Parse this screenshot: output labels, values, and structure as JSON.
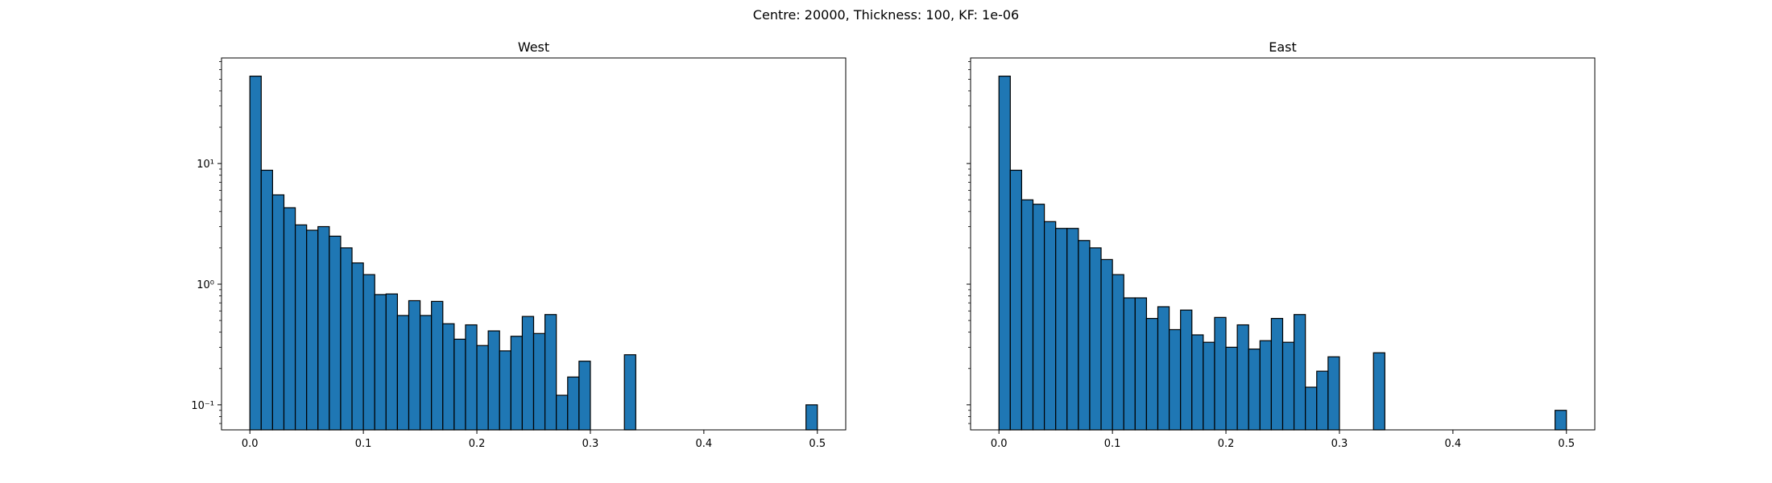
{
  "figure": {
    "suptitle": "Centre: 20000, Thickness: 100, KF: 1e-06",
    "bar_color": "#1f77b4",
    "edge_color": "#000000"
  },
  "chart_data": [
    {
      "type": "bar",
      "title": "West",
      "xlabel": "",
      "ylabel": "",
      "yscale": "log",
      "xlim": [
        -0.025,
        0.525
      ],
      "ylim": [
        0.062,
        75
      ],
      "xticks": [
        0.0,
        0.1,
        0.2,
        0.3,
        0.4,
        0.5
      ],
      "xtick_labels": [
        "0.0",
        "0.1",
        "0.2",
        "0.3",
        "0.4",
        "0.5"
      ],
      "yticks": [
        0.1,
        1,
        10
      ],
      "ytick_labels": [
        "10⁻¹",
        "10⁰",
        "10¹"
      ],
      "bin_edges": [
        0.0,
        0.01,
        0.02,
        0.03,
        0.04,
        0.05,
        0.06,
        0.07,
        0.08,
        0.09,
        0.1,
        0.11,
        0.12,
        0.13,
        0.14,
        0.15,
        0.16,
        0.17,
        0.18,
        0.19,
        0.2,
        0.21,
        0.22,
        0.23,
        0.24,
        0.25,
        0.26,
        0.27,
        0.28,
        0.29,
        0.3,
        0.31,
        0.32,
        0.33,
        0.34,
        0.35,
        0.36,
        0.37,
        0.38,
        0.39,
        0.4,
        0.41,
        0.42,
        0.43,
        0.44,
        0.45,
        0.46,
        0.47,
        0.48,
        0.49,
        0.5
      ],
      "values": [
        53,
        8.8,
        5.5,
        4.3,
        3.1,
        2.8,
        3.0,
        2.5,
        2.0,
        1.5,
        1.2,
        0.82,
        0.83,
        0.55,
        0.73,
        0.55,
        0.72,
        0.47,
        0.35,
        0.46,
        0.31,
        0.41,
        0.28,
        0.37,
        0.54,
        0.39,
        0.56,
        0.12,
        0.17,
        0.23,
        0,
        0,
        0,
        0.26,
        0,
        0,
        0,
        0,
        0,
        0,
        0,
        0,
        0,
        0,
        0,
        0,
        0,
        0,
        0,
        0.1
      ],
      "grid": false
    },
    {
      "type": "bar",
      "title": "East",
      "xlabel": "",
      "ylabel": "",
      "yscale": "log",
      "xlim": [
        -0.025,
        0.525
      ],
      "ylim": [
        0.062,
        75
      ],
      "xticks": [
        0.0,
        0.1,
        0.2,
        0.3,
        0.4,
        0.5
      ],
      "xtick_labels": [
        "0.0",
        "0.1",
        "0.2",
        "0.3",
        "0.4",
        "0.5"
      ],
      "yticks": [
        0.1,
        1,
        10
      ],
      "ytick_labels": [],
      "bin_edges": [
        0.0,
        0.01,
        0.02,
        0.03,
        0.04,
        0.05,
        0.06,
        0.07,
        0.08,
        0.09,
        0.1,
        0.11,
        0.12,
        0.13,
        0.14,
        0.15,
        0.16,
        0.17,
        0.18,
        0.19,
        0.2,
        0.21,
        0.22,
        0.23,
        0.24,
        0.25,
        0.26,
        0.27,
        0.28,
        0.29,
        0.3,
        0.31,
        0.32,
        0.33,
        0.34,
        0.35,
        0.36,
        0.37,
        0.38,
        0.39,
        0.4,
        0.41,
        0.42,
        0.43,
        0.44,
        0.45,
        0.46,
        0.47,
        0.48,
        0.49,
        0.5
      ],
      "values": [
        53,
        8.8,
        5.0,
        4.6,
        3.3,
        2.9,
        2.9,
        2.3,
        2.0,
        1.6,
        1.2,
        0.77,
        0.77,
        0.52,
        0.65,
        0.42,
        0.61,
        0.38,
        0.33,
        0.53,
        0.3,
        0.46,
        0.29,
        0.34,
        0.52,
        0.33,
        0.56,
        0.14,
        0.19,
        0.25,
        0,
        0,
        0,
        0.27,
        0,
        0,
        0,
        0,
        0,
        0,
        0,
        0,
        0,
        0,
        0,
        0,
        0,
        0,
        0,
        0.09
      ],
      "grid": false
    }
  ]
}
